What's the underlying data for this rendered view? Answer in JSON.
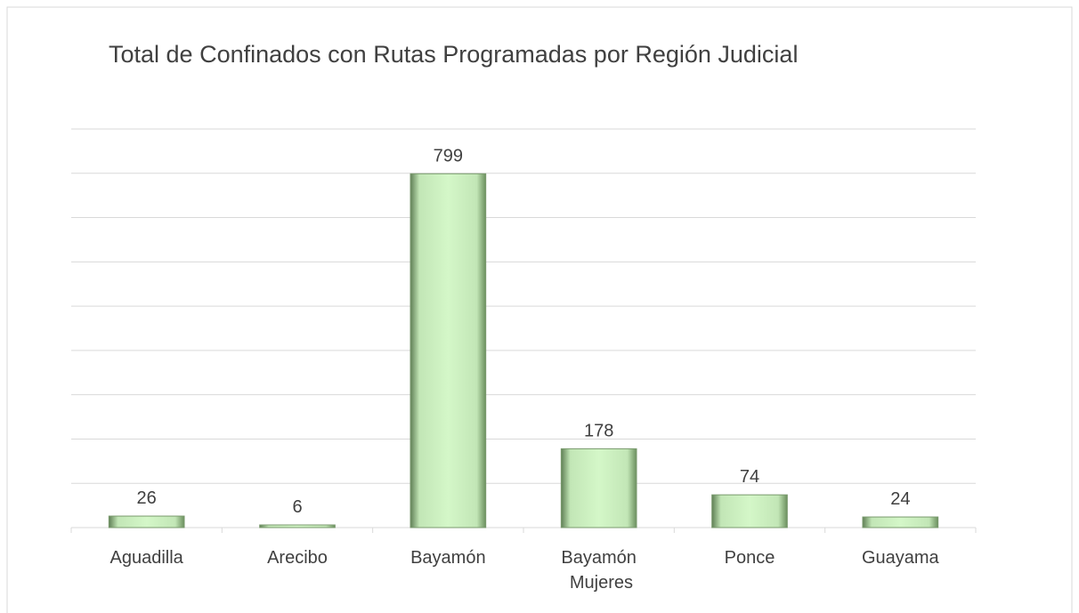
{
  "chart_data": {
    "type": "bar",
    "title": "Total de Confinados con Rutas Programadas por Región Judicial",
    "categories": [
      "Aguadilla",
      "Arecibo",
      "Bayamón",
      "Bayamón Mujeres",
      "Ponce",
      "Guayama"
    ],
    "values": [
      26,
      6,
      799,
      178,
      74,
      24
    ],
    "color": "#d4f7c8",
    "ylim": [
      0,
      900
    ],
    "yticks": [
      0,
      100,
      200,
      300,
      400,
      500,
      600,
      700,
      800,
      900
    ],
    "grid": true
  }
}
